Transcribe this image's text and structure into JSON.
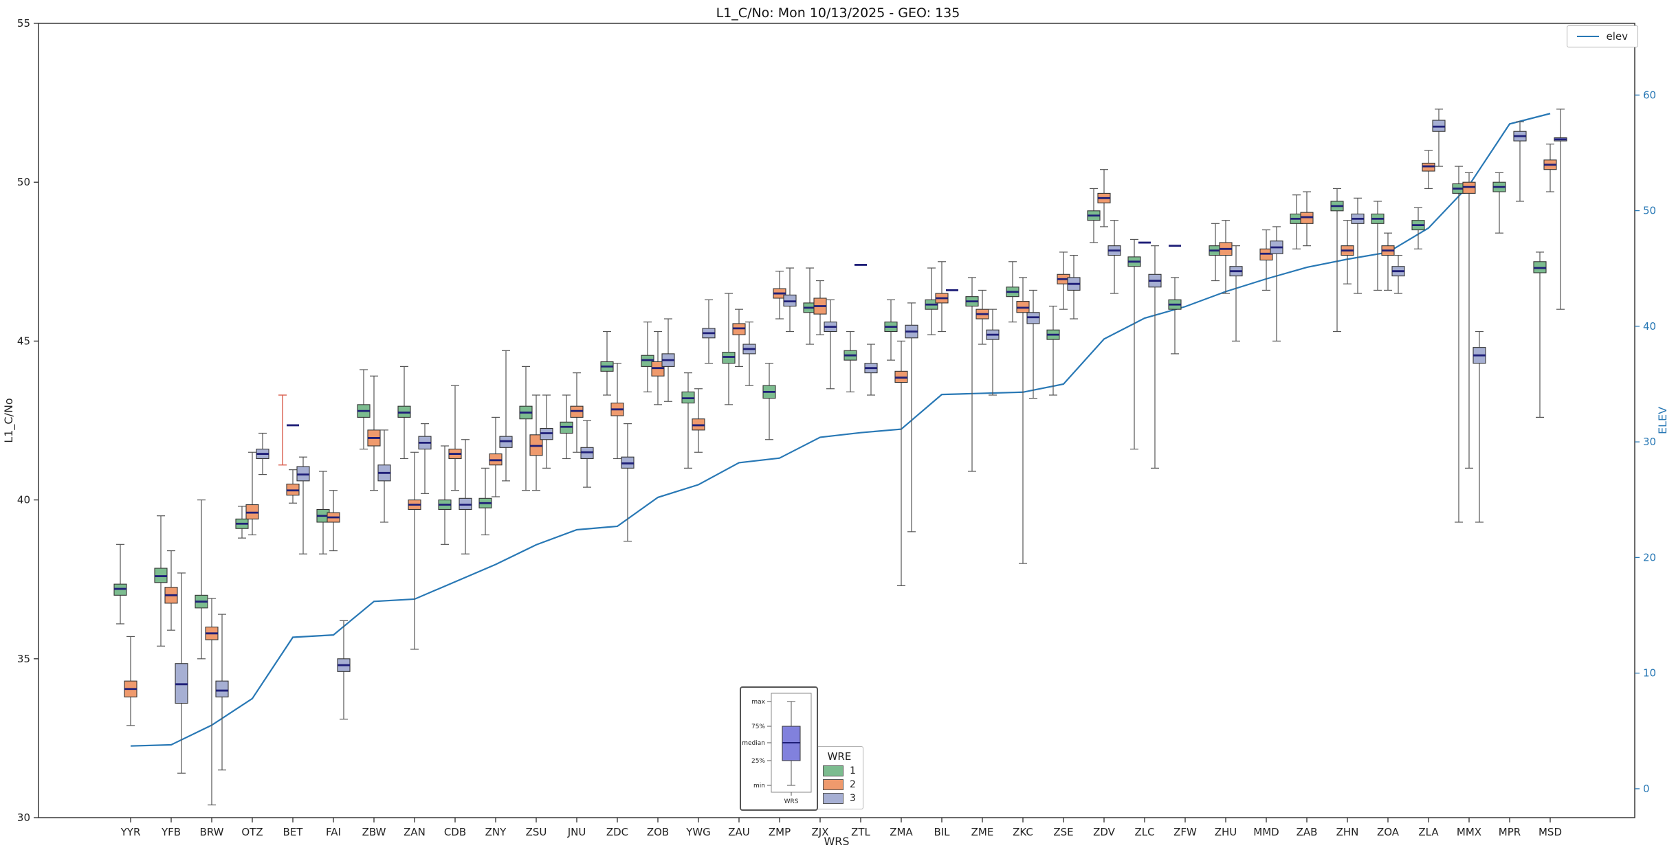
{
  "legend_elev": {
    "label": "elev"
  },
  "legend_wre": {
    "title": "WRE",
    "entries": [
      {
        "label": "1",
        "color": "#7cbc8f"
      },
      {
        "label": "2",
        "color": "#ef9a6d"
      },
      {
        "label": "3",
        "color": "#a6afd3"
      }
    ]
  },
  "inset": {
    "labels": [
      "max",
      "75%",
      "median",
      "25%",
      "min"
    ],
    "xlabel": "WRS",
    "box_color": "#8181dd"
  },
  "colors": {
    "median": "#1f1f78",
    "whisker": "#555555",
    "spine": "#2b2b2b",
    "right_axis": "#2878b5",
    "tick_text": "#222222"
  },
  "chart_data": {
    "type": "boxplot",
    "title": "L1_C/No: Mon 10/13/2025 - GEO: 135",
    "xlabel": "WRS",
    "ylabel_left": "L1_C/No",
    "ylabel_right": "ELEV",
    "ylim_left": [
      30,
      55
    ],
    "ylim_right": [
      -2.5,
      66.2
    ],
    "yticks_left": [
      30,
      35,
      40,
      45,
      50,
      55
    ],
    "yticks_right": [
      0,
      10,
      20,
      30,
      40,
      50,
      60
    ],
    "legend_position": "lower center",
    "grid": false,
    "series_names": [
      "1",
      "2",
      "3"
    ],
    "series_colors": [
      "#7cbc8f",
      "#ef9a6d",
      "#a6afd3"
    ],
    "box_stats_order": [
      "min",
      "q1",
      "median",
      "q3",
      "max"
    ],
    "categories": [
      "YYR",
      "YFB",
      "BRW",
      "OTZ",
      "BET",
      "FAI",
      "ZBW",
      "ZAN",
      "CDB",
      "ZNY",
      "ZSU",
      "JNU",
      "ZDC",
      "ZOB",
      "YWG",
      "ZAU",
      "ZMP",
      "ZJX",
      "ZTL",
      "ZMA",
      "BIL",
      "ZME",
      "ZKC",
      "ZSE",
      "ZDV",
      "ZLC",
      "ZFW",
      "ZHU",
      "MMD",
      "ZAB",
      "ZHN",
      "ZOA",
      "ZLA",
      "MMX",
      "MPR",
      "MSD"
    ],
    "boxes": [
      [
        [
          36.1,
          37.0,
          37.2,
          37.35,
          38.6
        ],
        [
          32.9,
          33.8,
          34.05,
          34.3,
          35.7
        ],
        null
      ],
      [
        [
          35.4,
          37.4,
          37.6,
          37.85,
          39.5
        ],
        [
          35.9,
          36.75,
          37.0,
          37.25,
          38.4
        ],
        [
          31.4,
          33.6,
          34.2,
          34.85,
          37.7
        ]
      ],
      [
        [
          35.0,
          36.6,
          36.8,
          37.0,
          40.0
        ],
        [
          30.4,
          35.6,
          35.8,
          36.0,
          36.9
        ],
        [
          31.5,
          33.8,
          34.0,
          34.3,
          36.4
        ]
      ],
      [
        [
          38.8,
          39.1,
          39.25,
          39.4,
          39.8
        ],
        [
          38.9,
          39.4,
          39.6,
          39.85,
          41.5
        ],
        [
          40.8,
          41.3,
          41.45,
          41.6,
          42.1
        ]
      ],
      [
        null,
        [
          39.9,
          40.15,
          40.3,
          40.5,
          40.95
        ],
        [
          38.3,
          40.6,
          40.8,
          41.05,
          41.35
        ]
      ],
      [
        [
          38.3,
          39.3,
          39.5,
          39.7,
          40.9
        ],
        [
          38.4,
          39.3,
          39.45,
          39.6,
          40.3
        ],
        [
          33.1,
          34.6,
          34.8,
          35.0,
          36.2
        ]
      ],
      [
        [
          41.6,
          42.6,
          42.8,
          43.0,
          44.1
        ],
        [
          40.3,
          41.7,
          41.95,
          42.2,
          43.9
        ],
        [
          39.3,
          40.6,
          40.85,
          41.1,
          42.2
        ]
      ],
      [
        [
          41.3,
          42.6,
          42.75,
          42.95,
          44.2
        ],
        [
          35.3,
          39.7,
          39.85,
          40.0,
          41.5
        ],
        [
          40.2,
          41.6,
          41.8,
          42.0,
          42.4
        ]
      ],
      [
        [
          38.6,
          39.7,
          39.85,
          40.0,
          41.7
        ],
        [
          40.3,
          41.3,
          41.45,
          41.6,
          43.6
        ],
        [
          38.3,
          39.7,
          39.85,
          40.05,
          41.9
        ]
      ],
      [
        [
          38.9,
          39.75,
          39.9,
          40.05,
          41.0
        ],
        [
          40.1,
          41.1,
          41.25,
          41.45,
          42.6
        ],
        [
          40.6,
          41.65,
          41.85,
          42.0,
          44.7
        ]
      ],
      [
        [
          40.3,
          42.55,
          42.75,
          42.95,
          44.2
        ],
        [
          40.3,
          41.4,
          41.7,
          42.05,
          43.3
        ],
        [
          41.0,
          41.9,
          42.1,
          42.25,
          43.3
        ]
      ],
      [
        [
          41.3,
          42.1,
          42.3,
          42.45,
          43.3
        ],
        [
          41.5,
          42.6,
          42.8,
          42.95,
          44.0
        ],
        [
          40.4,
          41.3,
          41.5,
          41.65,
          42.5
        ]
      ],
      [
        [
          43.3,
          44.05,
          44.2,
          44.35,
          45.3
        ],
        [
          41.3,
          42.65,
          42.85,
          43.05,
          44.3
        ],
        [
          38.7,
          41.0,
          41.15,
          41.35,
          42.4
        ]
      ],
      [
        [
          43.4,
          44.2,
          44.4,
          44.55,
          45.6
        ],
        [
          43.0,
          43.9,
          44.15,
          44.35,
          45.3
        ],
        [
          43.1,
          44.2,
          44.4,
          44.6,
          45.7
        ]
      ],
      [
        [
          41.0,
          43.05,
          43.2,
          43.4,
          44.0
        ],
        [
          41.5,
          42.2,
          42.35,
          42.55,
          43.5
        ],
        [
          44.3,
          45.1,
          45.25,
          45.4,
          46.3
        ]
      ],
      [
        [
          43.0,
          44.3,
          44.5,
          44.65,
          46.5
        ],
        [
          44.2,
          45.2,
          45.4,
          45.55,
          46.0
        ],
        [
          43.6,
          44.6,
          44.75,
          44.9,
          45.6
        ]
      ],
      [
        [
          41.9,
          43.2,
          43.4,
          43.6,
          44.3
        ],
        [
          45.7,
          46.35,
          46.5,
          46.65,
          47.2
        ],
        [
          45.3,
          46.1,
          46.25,
          46.45,
          47.3
        ]
      ],
      [
        [
          44.9,
          45.9,
          46.05,
          46.2,
          47.3
        ],
        [
          45.2,
          45.85,
          46.1,
          46.35,
          46.9
        ],
        [
          43.5,
          45.3,
          45.45,
          45.6,
          46.3
        ]
      ],
      [
        [
          43.4,
          44.4,
          44.55,
          44.7,
          45.3
        ],
        null,
        [
          43.3,
          44.0,
          44.15,
          44.3,
          44.9
        ]
      ],
      [
        [
          44.4,
          45.3,
          45.45,
          45.6,
          46.3
        ],
        [
          37.3,
          43.7,
          43.85,
          44.05,
          45.0
        ],
        [
          39.0,
          45.1,
          45.3,
          45.5,
          46.2
        ]
      ],
      [
        [
          45.2,
          46.0,
          46.15,
          46.3,
          47.3
        ],
        [
          45.3,
          46.2,
          46.35,
          46.5,
          47.5
        ],
        null
      ],
      [
        [
          40.9,
          46.1,
          46.25,
          46.4,
          47.0
        ],
        [
          44.9,
          45.7,
          45.85,
          46.0,
          46.6
        ],
        [
          43.3,
          45.05,
          45.2,
          45.35,
          46.0
        ]
      ],
      [
        [
          45.6,
          46.4,
          46.55,
          46.7,
          47.5
        ],
        [
          38.0,
          45.9,
          46.05,
          46.25,
          47.0
        ],
        [
          43.2,
          45.55,
          45.75,
          45.9,
          46.6
        ]
      ],
      [
        [
          43.3,
          45.05,
          45.2,
          45.35,
          46.1
        ],
        [
          46.0,
          46.8,
          46.95,
          47.1,
          47.8
        ],
        [
          45.7,
          46.6,
          46.8,
          47.0,
          47.7
        ]
      ],
      [
        [
          48.1,
          48.8,
          48.95,
          49.1,
          49.8
        ],
        [
          48.6,
          49.35,
          49.5,
          49.65,
          50.4
        ],
        [
          46.5,
          47.7,
          47.85,
          48.0,
          48.8
        ]
      ],
      [
        [
          41.6,
          47.35,
          47.5,
          47.65,
          48.2
        ],
        null,
        [
          41.0,
          46.7,
          46.9,
          47.1,
          48.0
        ]
      ],
      [
        [
          44.6,
          46.0,
          46.15,
          46.3,
          47.0
        ],
        null,
        null
      ],
      [
        [
          46.9,
          47.7,
          47.85,
          48.0,
          48.7
        ],
        [
          46.5,
          47.7,
          47.9,
          48.1,
          48.8
        ],
        [
          45.0,
          47.05,
          47.2,
          47.35,
          48.0
        ]
      ],
      [
        null,
        [
          46.6,
          47.55,
          47.75,
          47.9,
          48.5
        ],
        [
          45.0,
          47.75,
          47.95,
          48.15,
          48.6
        ]
      ],
      [
        [
          47.9,
          48.7,
          48.85,
          49.0,
          49.6
        ],
        [
          48.0,
          48.7,
          48.9,
          49.05,
          49.7
        ],
        null
      ],
      [
        [
          45.3,
          49.1,
          49.25,
          49.4,
          49.8
        ],
        [
          46.8,
          47.7,
          47.85,
          48.0,
          48.8
        ],
        [
          46.5,
          48.7,
          48.85,
          49.0,
          49.5
        ]
      ],
      [
        [
          46.6,
          48.7,
          48.85,
          49.0,
          49.4
        ],
        [
          46.6,
          47.7,
          47.85,
          48.0,
          48.4
        ],
        [
          46.5,
          47.05,
          47.2,
          47.35,
          47.7
        ]
      ],
      [
        [
          47.9,
          48.5,
          48.65,
          48.8,
          49.2
        ],
        [
          49.8,
          50.35,
          50.5,
          50.6,
          51.0
        ],
        [
          50.5,
          51.6,
          51.75,
          51.95,
          52.3
        ]
      ],
      [
        [
          39.3,
          49.65,
          49.8,
          49.95,
          50.5
        ],
        [
          41.0,
          49.65,
          49.85,
          50.0,
          50.3
        ],
        [
          39.3,
          44.3,
          44.55,
          44.8,
          45.3
        ]
      ],
      [
        [
          48.4,
          49.7,
          49.85,
          50.0,
          50.3
        ],
        null,
        [
          49.4,
          51.3,
          51.45,
          51.6,
          51.9
        ]
      ],
      [
        [
          42.6,
          47.15,
          47.3,
          47.5,
          47.8
        ],
        [
          49.7,
          50.4,
          50.55,
          50.7,
          51.2
        ],
        [
          46.0,
          51.3,
          51.35,
          51.4,
          52.3
        ]
      ]
    ],
    "marks": [
      {
        "station": "BET",
        "slot": 0,
        "type": "line",
        "lo": 41.1,
        "hi": 43.3,
        "color": "#d95f4e"
      },
      {
        "station": "BET",
        "slot": 1,
        "type": "dash",
        "value": 42.35
      },
      {
        "station": "ZTL",
        "slot": 1,
        "type": "dash",
        "value": 47.4
      },
      {
        "station": "BIL",
        "slot": 2,
        "type": "dash",
        "value": 46.6
      },
      {
        "station": "ZLC",
        "slot": 1,
        "type": "dash",
        "value": 48.1
      },
      {
        "station": "ZFW",
        "slot": 0,
        "type": "dash",
        "value": 48.0
      }
    ],
    "elev_line": {
      "name": "elev",
      "color": "#2878b5",
      "values": [
        3.7,
        3.8,
        5.5,
        7.8,
        13.1,
        13.3,
        16.2,
        16.4,
        17.9,
        19.4,
        21.1,
        22.4,
        22.7,
        25.2,
        26.3,
        28.2,
        28.6,
        30.4,
        30.8,
        31.1,
        34.1,
        34.2,
        34.3,
        35.0,
        38.9,
        40.7,
        41.7,
        43.0,
        44.1,
        45.1,
        45.8,
        46.4,
        48.5,
        52.2,
        57.5,
        58.4
      ]
    }
  }
}
